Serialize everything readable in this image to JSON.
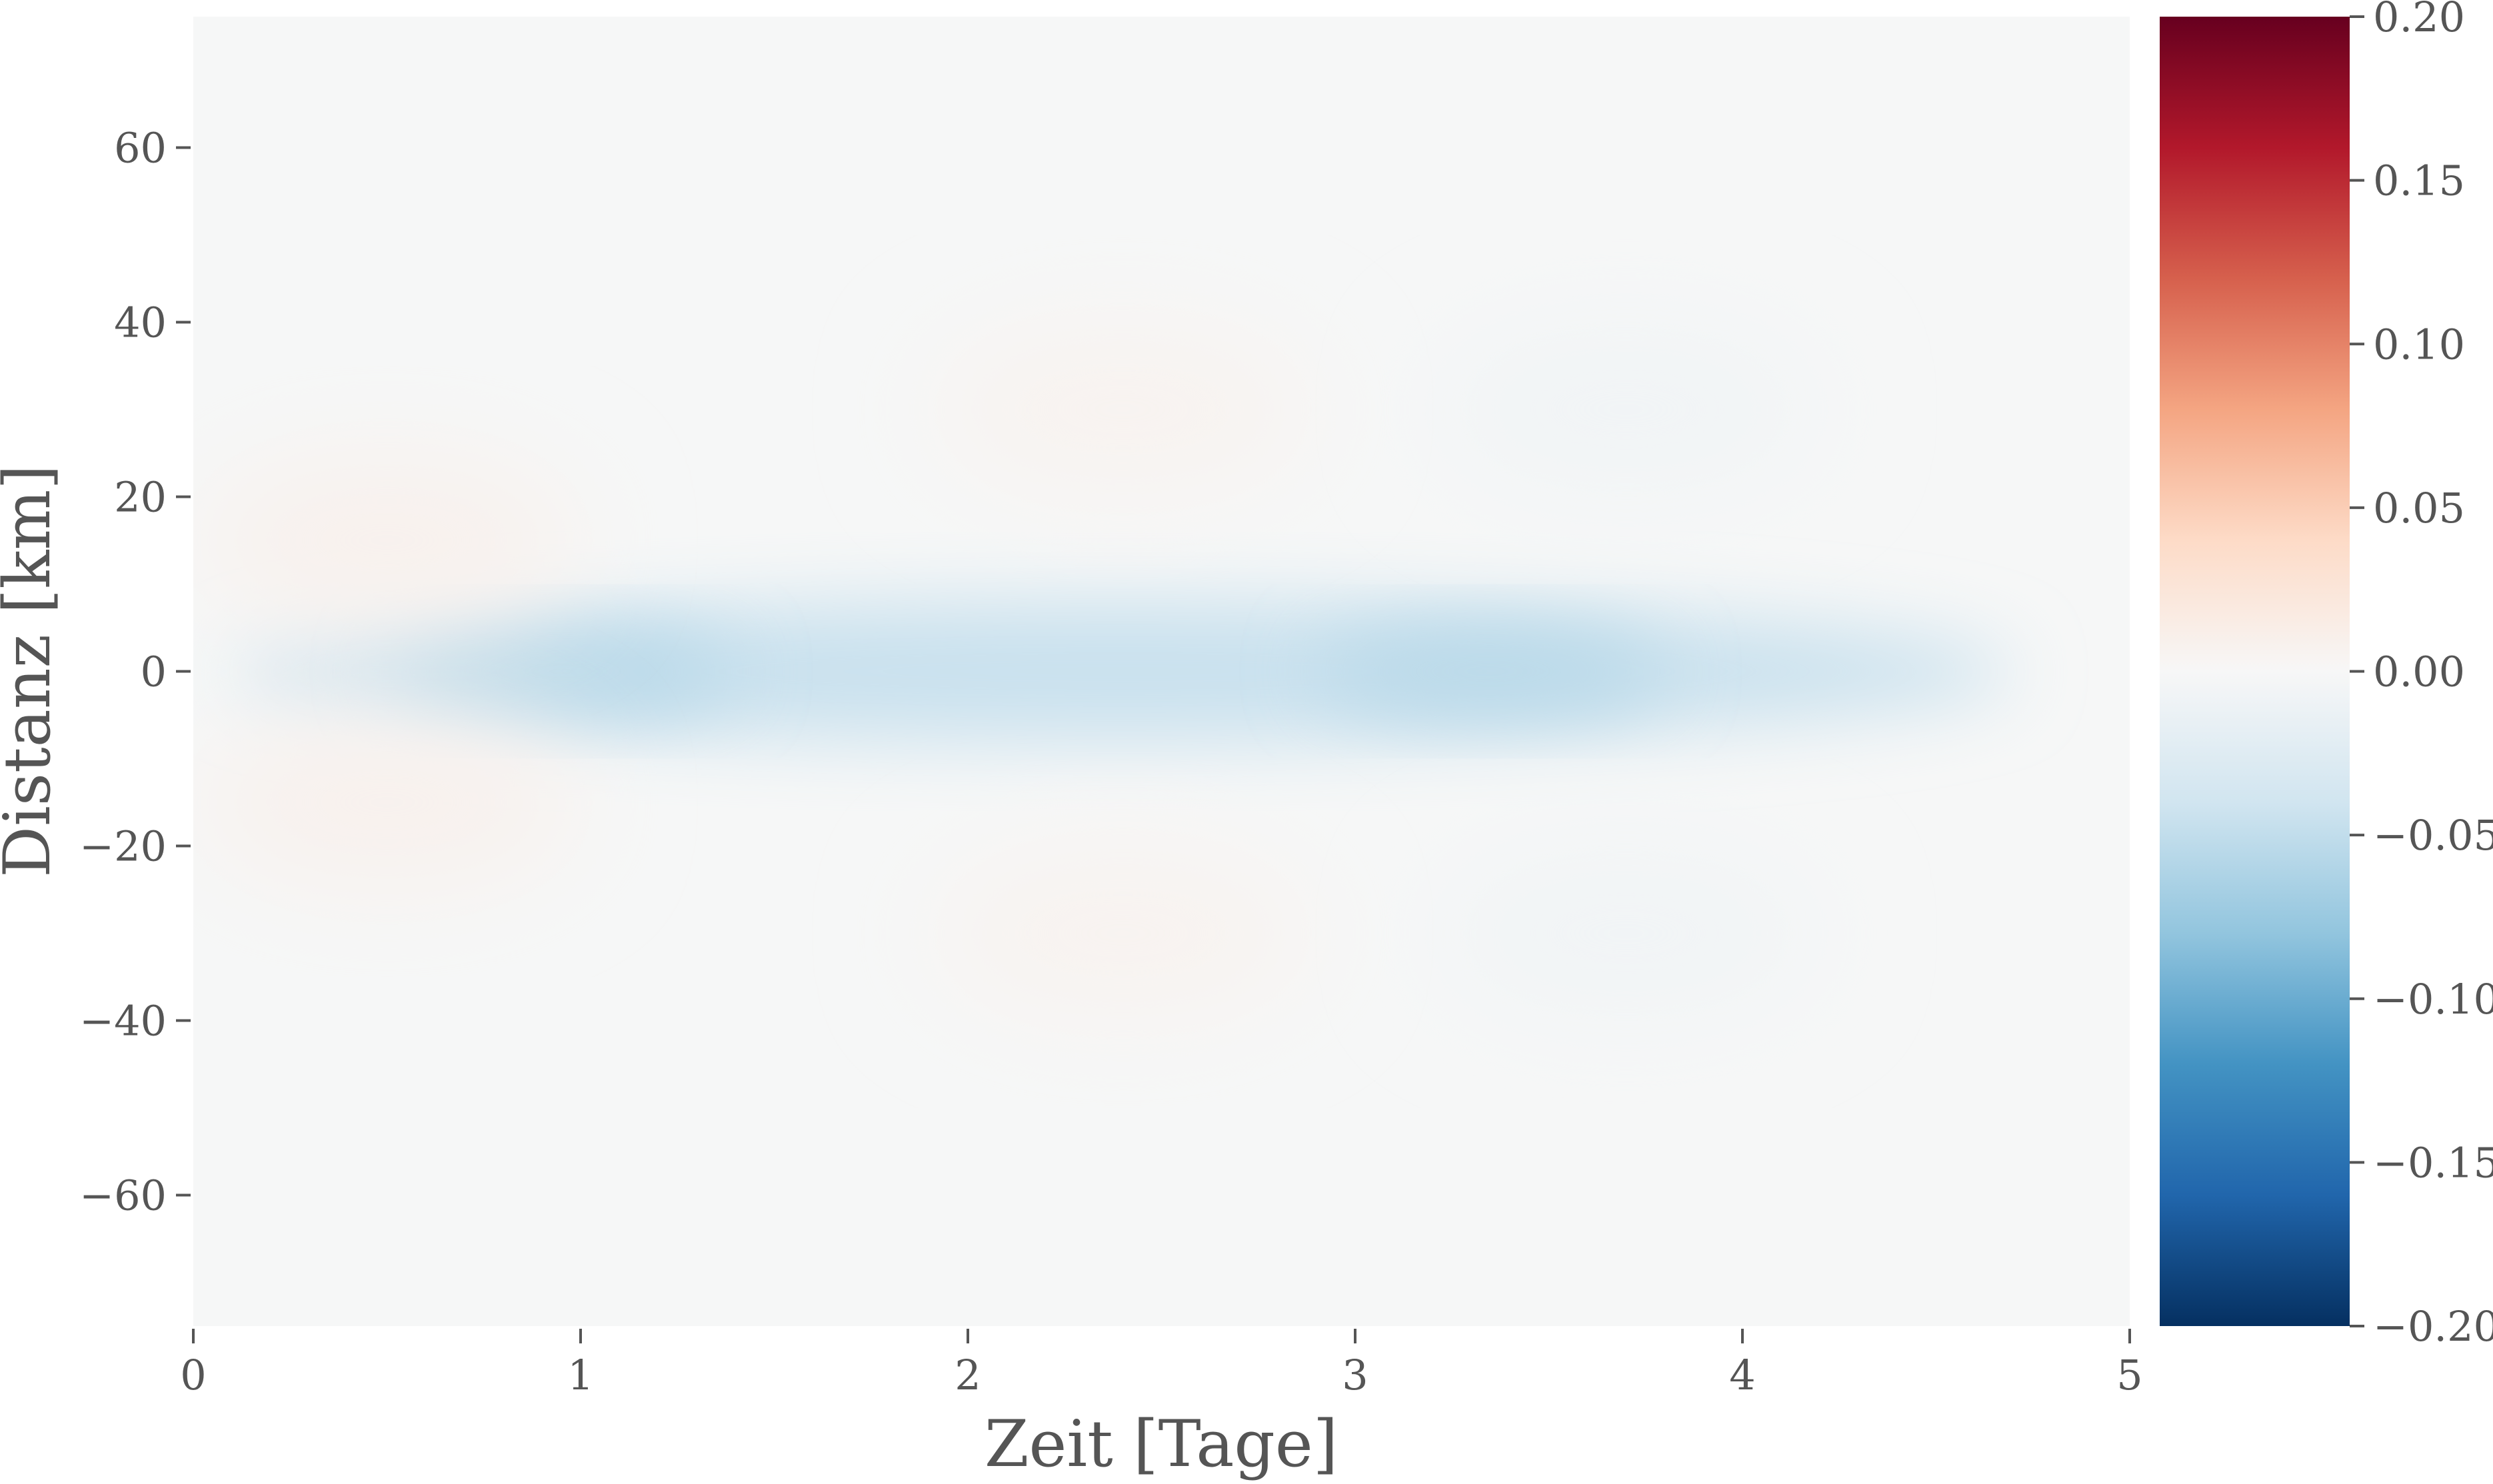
{
  "chart_data": {
    "type": "heatmap",
    "title": "",
    "xlabel": "Zeit [Tage]",
    "ylabel": "Distanz [km]",
    "xlim": [
      0,
      5
    ],
    "ylim": [
      -75,
      75
    ],
    "x_ticks": [
      0,
      1,
      2,
      3,
      4,
      5
    ],
    "x_tick_labels": [
      "0",
      "1",
      "2",
      "3",
      "4",
      "5"
    ],
    "y_ticks": [
      60,
      40,
      20,
      0,
      -20,
      -40,
      -60
    ],
    "y_tick_labels": [
      "60",
      "40",
      "20",
      "0",
      "−20",
      "−40",
      "−60"
    ],
    "colorbar": {
      "cmap": "RdBu_r",
      "vmin": -0.2,
      "vmax": 0.2,
      "ticks": [
        0.2,
        0.15,
        0.1,
        0.05,
        0.0,
        -0.05,
        -0.1,
        -0.15,
        -0.2
      ],
      "tick_labels": [
        "0.20",
        "0.15",
        "0.10",
        "0.05",
        "0.00",
        "−0.05",
        "−0.10",
        "−0.15",
        "−0.20"
      ],
      "colors": [
        "#053061",
        "#2166ac",
        "#4393c3",
        "#92c5de",
        "#d1e5f0",
        "#f7f7f7",
        "#fddbc7",
        "#f4a582",
        "#d6604d",
        "#b2182b",
        "#67001f"
      ]
    },
    "features": [
      {
        "t_start": 0.1,
        "t_end": 4.7,
        "d": 0,
        "value": -0.045
      },
      {
        "t_center": 0.95,
        "d": 0,
        "value": -0.055
      },
      {
        "t_center": 3.35,
        "d": 0,
        "value": -0.055
      },
      {
        "t_center": 0.5,
        "d": 15,
        "value": 0.008
      },
      {
        "t_center": 0.5,
        "d": -15,
        "value": 0.008
      },
      {
        "t_center": 2.4,
        "d": 30,
        "value": 0.006
      },
      {
        "t_center": 2.4,
        "d": -30,
        "value": 0.006
      },
      {
        "t_center": 3.7,
        "d": 30,
        "value": -0.006
      },
      {
        "t_center": 3.7,
        "d": -30,
        "value": -0.006
      }
    ]
  }
}
